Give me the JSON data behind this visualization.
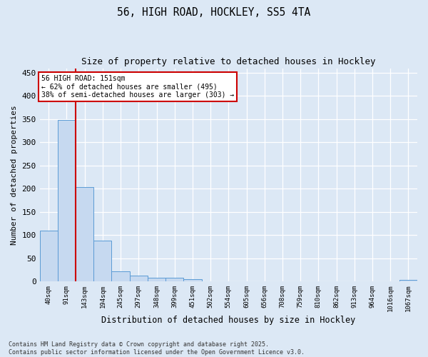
{
  "title_line1": "56, HIGH ROAD, HOCKLEY, SS5 4TA",
  "title_line2": "Size of property relative to detached houses in Hockley",
  "xlabel": "Distribution of detached houses by size in Hockley",
  "ylabel": "Number of detached properties",
  "bin_labels": [
    "40sqm",
    "91sqm",
    "143sqm",
    "194sqm",
    "245sqm",
    "297sqm",
    "348sqm",
    "399sqm",
    "451sqm",
    "502sqm",
    "554sqm",
    "605sqm",
    "656sqm",
    "708sqm",
    "759sqm",
    "810sqm",
    "862sqm",
    "913sqm",
    "964sqm",
    "1016sqm",
    "1067sqm"
  ],
  "bar_values": [
    110,
    348,
    203,
    88,
    22,
    13,
    8,
    7,
    5,
    0,
    0,
    0,
    0,
    0,
    0,
    0,
    0,
    0,
    0,
    0,
    3
  ],
  "bar_color": "#c6d9f0",
  "bar_edge_color": "#5b9bd5",
  "red_line_x": 1.5,
  "annotation_line1": "56 HIGH ROAD: 151sqm",
  "annotation_line2": "← 62% of detached houses are smaller (495)",
  "annotation_line3": "38% of semi-detached houses are larger (303) →",
  "annotation_box_color": "#ffffff",
  "annotation_box_edge": "#cc0000",
  "red_line_color": "#cc0000",
  "ylim": [
    0,
    460
  ],
  "yticks": [
    0,
    50,
    100,
    150,
    200,
    250,
    300,
    350,
    400,
    450
  ],
  "footer_line1": "Contains HM Land Registry data © Crown copyright and database right 2025.",
  "footer_line2": "Contains public sector information licensed under the Open Government Licence v3.0.",
  "bg_color": "#dce8f5",
  "plot_bg_color": "#dce8f5"
}
